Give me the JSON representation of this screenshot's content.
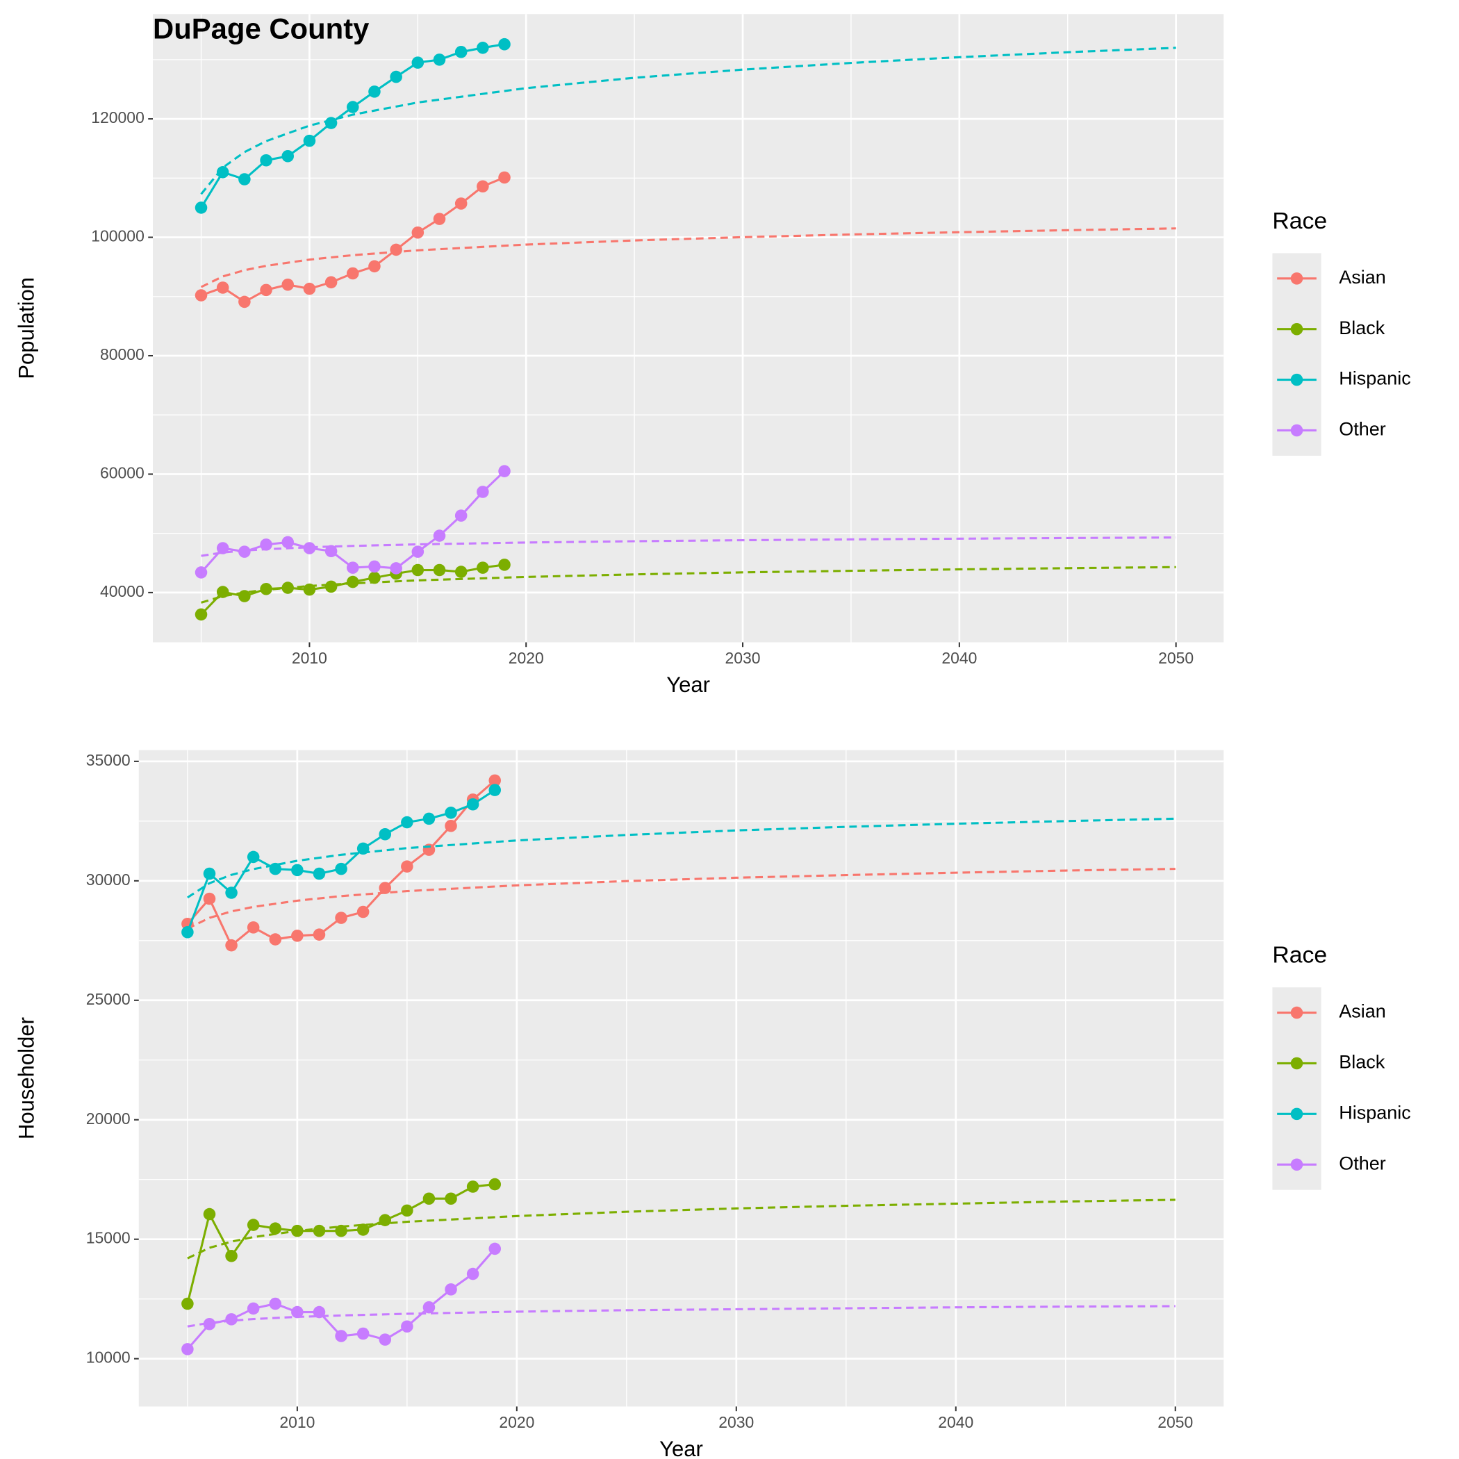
{
  "chart_data": [
    {
      "type": "line",
      "title": "DuPage County",
      "x_label": "Year",
      "y_label": "Population",
      "legend_title": "Race",
      "xlim": [
        2002.77,
        2052.2
      ],
      "ylim": [
        31600,
        137700
      ],
      "xticks": [
        2010,
        2020,
        2030,
        2040,
        2050
      ],
      "yticks": [
        40000,
        60000,
        80000,
        100000,
        120000
      ],
      "grid": true,
      "legend": "right",
      "x": [
        2005,
        2006,
        2007,
        2008,
        2009,
        2010,
        2011,
        2012,
        2013,
        2014,
        2015,
        2016,
        2017,
        2018,
        2019
      ],
      "trend_x": [
        2005,
        2006,
        2007,
        2008,
        2010,
        2012,
        2015,
        2020,
        2025,
        2030,
        2035,
        2040,
        2045,
        2050
      ],
      "series": [
        {
          "name": "Asian",
          "color": "#F8766D",
          "values": [
            90200,
            91500,
            89100,
            91100,
            92000,
            91300,
            92400,
            93900,
            95100,
            97900,
            100800,
            103100,
            105700,
            108600,
            110100
          ],
          "trend": [
            91600,
            93390,
            94440,
            95180,
            96230,
            96980,
            97800,
            98770,
            99470,
            100020,
            100480,
            100860,
            101200,
            101500
          ]
        },
        {
          "name": "Black",
          "color": "#7CAE00",
          "values": [
            36300,
            40100,
            39400,
            40600,
            40800,
            40500,
            41000,
            41800,
            42500,
            43200,
            43800,
            43800,
            43500,
            44200,
            44700
          ],
          "trend": [
            38300,
            39390,
            40020,
            40470,
            41110,
            41560,
            42060,
            42640,
            43070,
            43410,
            43680,
            43920,
            44120,
            44300
          ]
        },
        {
          "name": "Hispanic",
          "color": "#00BFC4",
          "values": [
            105000,
            111000,
            109800,
            113000,
            113700,
            116300,
            119300,
            122000,
            124600,
            127100,
            129500,
            130000,
            131300,
            132000,
            132600
          ],
          "trend": [
            107300,
            111770,
            114390,
            116240,
            118860,
            120710,
            122770,
            125190,
            126940,
            128320,
            129450,
            130420,
            131260,
            132000
          ]
        },
        {
          "name": "Other",
          "color": "#C77CFF",
          "values": [
            43400,
            47500,
            46900,
            48100,
            48500,
            47500,
            47000,
            44200,
            44400,
            44100,
            46900,
            49600,
            53000,
            57000,
            60500
          ],
          "trend": [
            46200,
            46760,
            47090,
            47320,
            47650,
            47880,
            48140,
            48450,
            48670,
            48840,
            48980,
            49100,
            49210,
            49300
          ]
        }
      ]
    },
    {
      "type": "line",
      "x_label": "Year",
      "y_label": "Householder",
      "legend_title": "Race",
      "xlim": [
        2002.78,
        2052.2
      ],
      "ylim": [
        8000,
        35470
      ],
      "xticks": [
        2010,
        2020,
        2030,
        2040,
        2050
      ],
      "yticks": [
        10000,
        15000,
        20000,
        25000,
        30000,
        35000
      ],
      "grid": true,
      "legend": "right",
      "x": [
        2005,
        2006,
        2007,
        2008,
        2009,
        2010,
        2011,
        2012,
        2013,
        2014,
        2015,
        2016,
        2017,
        2018,
        2019
      ],
      "trend_x": [
        2005,
        2006,
        2007,
        2008,
        2010,
        2012,
        2015,
        2020,
        2025,
        2030,
        2035,
        2040,
        2045,
        2050
      ],
      "series": [
        {
          "name": "Asian",
          "color": "#F8766D",
          "values": [
            28200,
            29250,
            27300,
            28050,
            27550,
            27700,
            27750,
            28450,
            28700,
            29700,
            30600,
            31300,
            32300,
            33400,
            34200
          ],
          "trend": [
            28000,
            28450,
            28720,
            28910,
            29170,
            29360,
            29570,
            29810,
            29990,
            30130,
            30240,
            30340,
            30430,
            30500
          ]
        },
        {
          "name": "Black",
          "color": "#7CAE00",
          "values": [
            12300,
            16050,
            14300,
            15600,
            15450,
            15350,
            15350,
            15350,
            15400,
            15800,
            16200,
            16700,
            16700,
            17200,
            17300
          ],
          "trend": [
            14200,
            14640,
            14900,
            15090,
            15350,
            15530,
            15730,
            15970,
            16150,
            16290,
            16400,
            16490,
            16580,
            16650
          ]
        },
        {
          "name": "Hispanic",
          "color": "#00BFC4",
          "values": [
            27850,
            30300,
            29500,
            31000,
            30500,
            30450,
            30300,
            30500,
            31350,
            31950,
            32450,
            32600,
            32850,
            33200,
            33800
          ],
          "trend": [
            29300,
            29900,
            30250,
            30490,
            30840,
            31090,
            31370,
            31690,
            31920,
            32110,
            32260,
            32390,
            32500,
            32600
          ]
        },
        {
          "name": "Other",
          "color": "#C77CFF",
          "values": [
            10400,
            11450,
            11650,
            12100,
            12300,
            11950,
            11950,
            10950,
            11050,
            10800,
            11350,
            12150,
            12900,
            13550,
            14600
          ],
          "trend": [
            11350,
            11500,
            11590,
            11660,
            11750,
            11810,
            11880,
            11970,
            12030,
            12070,
            12110,
            12150,
            12180,
            12200
          ]
        }
      ]
    }
  ]
}
